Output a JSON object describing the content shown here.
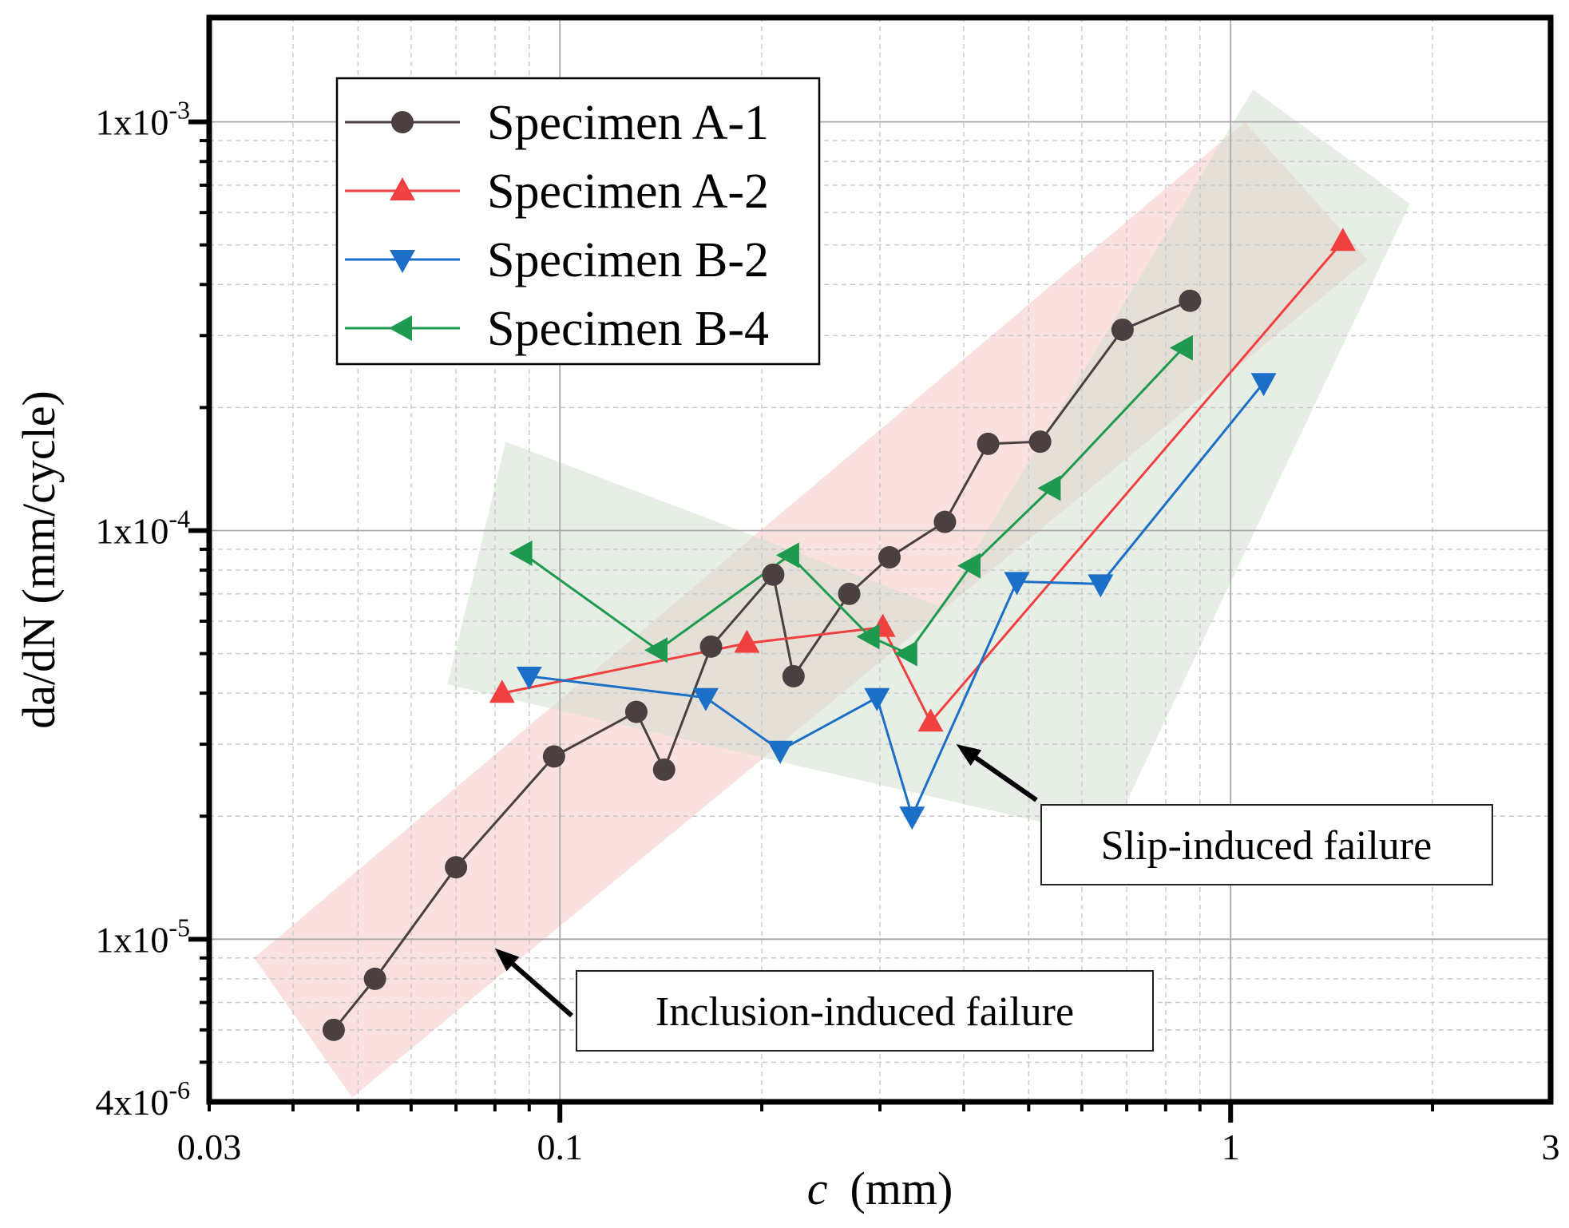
{
  "chart_data": {
    "type": "line",
    "xlabel_var": "c",
    "xlabel_unit": "(mm)",
    "ylabel": "da/dN (mm/cycle)",
    "x_scale": "log",
    "y_scale": "log",
    "xlim": [
      0.03,
      3
    ],
    "ylim": [
      4e-06,
      0.0018
    ],
    "grid": true,
    "legend_position": "top-left",
    "x_ticks": [
      {
        "value": 0.03,
        "label": "0.03"
      },
      {
        "value": 0.1,
        "label": "0.1"
      },
      {
        "value": 1,
        "label": "1"
      },
      {
        "value": 3,
        "label": "3"
      }
    ],
    "y_ticks": [
      {
        "value": 4e-06,
        "base": "4x10",
        "exp": "-6"
      },
      {
        "value": 1e-05,
        "base": "1x10",
        "exp": "-5"
      },
      {
        "value": 0.0001,
        "base": "1x10",
        "exp": "-4"
      },
      {
        "value": 0.001,
        "base": "1x10",
        "exp": "-3"
      }
    ],
    "series": [
      {
        "name": "Specimen A-1",
        "color": "#4a4040",
        "marker": "circle",
        "points": [
          [
            0.046,
            6e-06
          ],
          [
            0.053,
            8e-06
          ],
          [
            0.07,
            1.5e-05
          ],
          [
            0.098,
            2.8e-05
          ],
          [
            0.13,
            3.6e-05
          ],
          [
            0.143,
            2.6e-05
          ],
          [
            0.168,
            5.2e-05
          ],
          [
            0.208,
            7.8e-05
          ],
          [
            0.223,
            4.4e-05
          ],
          [
            0.27,
            7e-05
          ],
          [
            0.31,
            8.6e-05
          ],
          [
            0.375,
            0.000105
          ],
          [
            0.435,
            0.000163
          ],
          [
            0.52,
            0.000165
          ],
          [
            0.69,
            0.00031
          ],
          [
            0.87,
            0.000365
          ]
        ]
      },
      {
        "name": "Specimen A-2",
        "color": "#f04040",
        "marker": "triangle-up",
        "points": [
          [
            0.082,
            4e-05
          ],
          [
            0.19,
            5.3e-05
          ],
          [
            0.303,
            5.8e-05
          ],
          [
            0.357,
            3.4e-05
          ],
          [
            1.47,
            0.00051
          ]
        ]
      },
      {
        "name": "Specimen B-2",
        "color": "#1c6fc6",
        "marker": "triangle-down",
        "points": [
          [
            0.09,
            4.4e-05
          ],
          [
            0.165,
            3.9e-05
          ],
          [
            0.213,
            2.9e-05
          ],
          [
            0.297,
            3.9e-05
          ],
          [
            0.335,
            2e-05
          ],
          [
            0.48,
            7.5e-05
          ],
          [
            0.64,
            7.4e-05
          ],
          [
            1.12,
            0.00023
          ]
        ]
      },
      {
        "name": "Specimen B-4",
        "color": "#1e9a50",
        "marker": "triangle-left",
        "points": [
          [
            0.088,
            8.8e-05
          ],
          [
            0.14,
            5.1e-05
          ],
          [
            0.22,
            8.7e-05
          ],
          [
            0.29,
            5.5e-05
          ],
          [
            0.33,
            5e-05
          ],
          [
            0.41,
            8.2e-05
          ],
          [
            0.54,
            0.000127
          ],
          [
            0.85,
            0.00028
          ]
        ]
      }
    ],
    "annotations": [
      {
        "text": "Slip-induced failure",
        "point_to": [
          0.39,
          3e-05
        ]
      },
      {
        "text": "Inclusion-induced failure",
        "point_to": [
          0.08,
          9.5e-06
        ]
      }
    ],
    "bands": [
      {
        "name": "inclusion-band",
        "color": "#f6c6c4",
        "polygon": [
          [
            0.035,
            9e-06
          ],
          [
            1.05,
            0.001
          ],
          [
            1.6,
            0.00046
          ],
          [
            0.049,
            4.1e-06
          ]
        ]
      },
      {
        "name": "slip-band",
        "color": "#d3e0d0",
        "polygon": [
          [
            0.083,
            0.000165
          ],
          [
            0.37,
            6.5e-05
          ],
          [
            1.08,
            0.0012
          ],
          [
            1.85,
            0.00063
          ],
          [
            0.66,
            1.77e-05
          ],
          [
            0.068,
            4.2e-05
          ]
        ]
      }
    ]
  }
}
